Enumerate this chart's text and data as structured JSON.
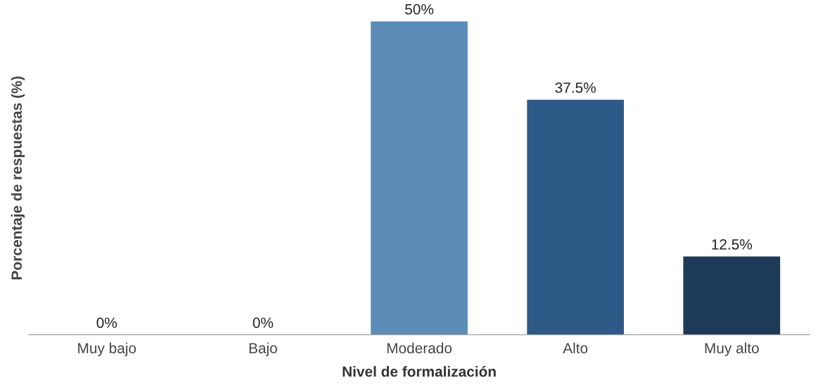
{
  "chart_data": {
    "type": "bar",
    "xlabel": "Nivel de formalización",
    "ylabel": "Porcentaje de respuestas (%)",
    "categories": [
      "Muy bajo",
      "Bajo",
      "Moderado",
      "Alto",
      "Muy alto"
    ],
    "values": [
      0,
      0,
      50,
      37.5,
      12.5
    ],
    "colors": [
      "#c9d4e0",
      "#b4c7dc",
      "#5b8db8",
      "#2e5a87",
      "#1d3a58"
    ],
    "value_labels": [
      "0%",
      "0%",
      "50%",
      "37.5%",
      "12.5%"
    ],
    "tick_labels": "x",
    "grid": false,
    "legend": false
  }
}
